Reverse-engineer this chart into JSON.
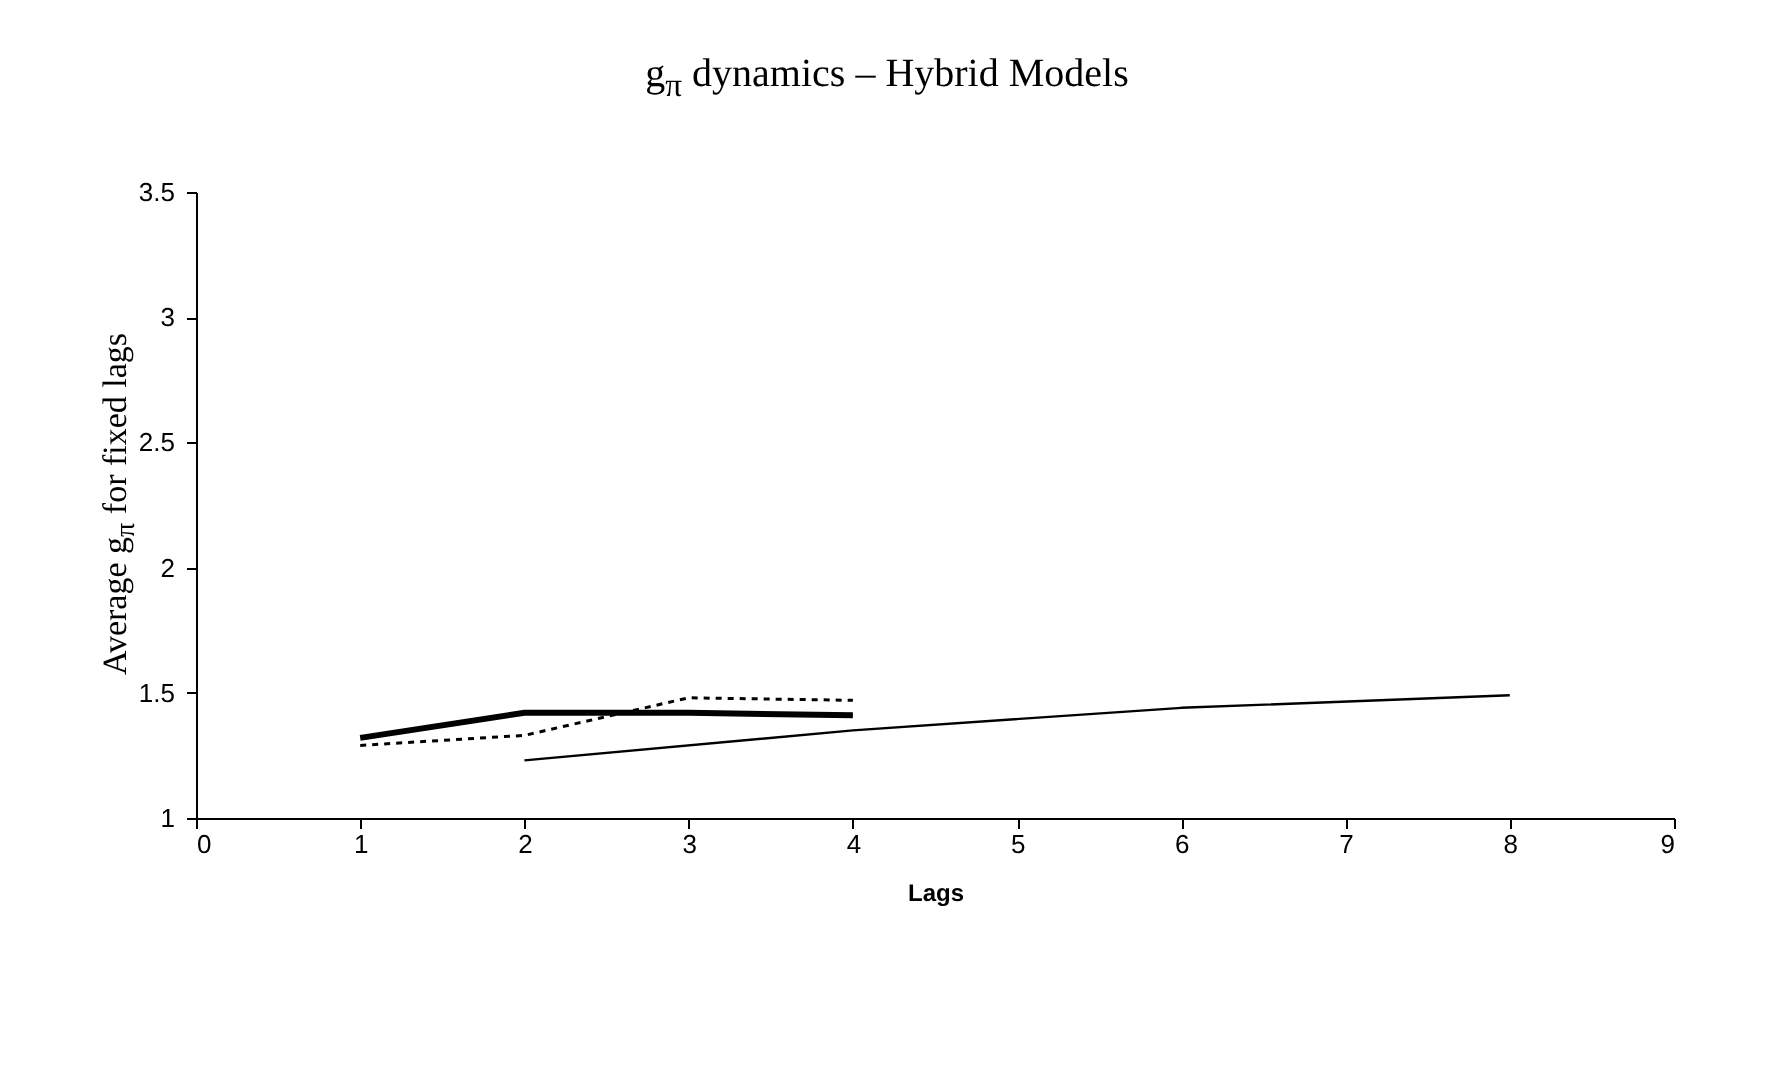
{
  "chart_data": {
    "type": "line",
    "title": "g$_{π}$ dynamics – Hybrid Models",
    "xlabel": "Lags",
    "ylabel": "Average g$_{π}$ for fixed lags",
    "xlim": [
      0,
      9
    ],
    "xticks": [
      0,
      1,
      2,
      3,
      4,
      5,
      6,
      7,
      8,
      9
    ],
    "ylim": [
      1,
      3.5
    ],
    "yticks": [
      1,
      1.5,
      2,
      2.5,
      3,
      3.5
    ],
    "grid": false,
    "marker": "none",
    "series": [
      {
        "color": "#000000",
        "line_style": "solid",
        "x": [
          1,
          2,
          3,
          4
        ],
        "values": [
          1.32,
          1.42,
          1.42,
          1.41
        ]
      },
      {
        "color": "#000000",
        "line_style": "dotted",
        "x": [
          1,
          2,
          3,
          4
        ],
        "values": [
          1.29,
          1.33,
          1.48,
          1.47
        ]
      },
      {
        "color": "#000000",
        "line_style": "solid",
        "x": [
          2,
          4,
          6,
          8
        ],
        "values": [
          1.23,
          1.35,
          1.44,
          1.49
        ]
      }
    ]
  }
}
